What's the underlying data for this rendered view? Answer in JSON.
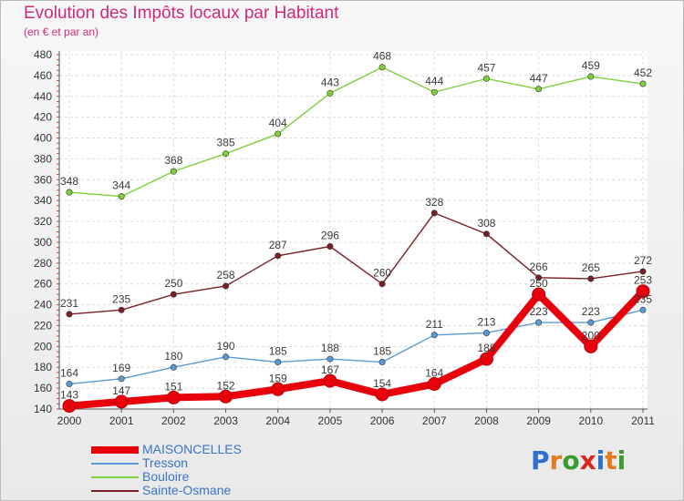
{
  "title": "Evolution des Impôts locaux par Habitant",
  "subtitle": "(en € et par an)",
  "logo": {
    "text": "Proxiti",
    "colors": [
      "#2f6fd1",
      "#e07b1f",
      "#3b9c2d",
      "#d4291e",
      "#2f6fd1",
      "#e07b1f",
      "#3b9c2d"
    ]
  },
  "chart_data": {
    "type": "line",
    "title": "Evolution des Impôts locaux par Habitant",
    "subtitle": "(en € et par an)",
    "x": [
      "2000",
      "2001",
      "2002",
      "2003",
      "2004",
      "2005",
      "2006",
      "2007",
      "2008",
      "2009",
      "2010",
      "2011"
    ],
    "ylim": [
      140,
      480
    ],
    "yticks": [
      140,
      160,
      180,
      200,
      220,
      240,
      260,
      280,
      300,
      320,
      340,
      360,
      380,
      400,
      420,
      440,
      460,
      480
    ],
    "grid": true,
    "legend_position": "bottom-left",
    "series": [
      {
        "name": "MAISONCELLES",
        "color": "#e8000b",
        "label_color": "#3a3a3a",
        "thick": true,
        "values": [
          143,
          147,
          151,
          152,
          159,
          167,
          154,
          164,
          188,
          250,
          200,
          253
        ],
        "labels": [
          "143",
          "147",
          "151",
          "152",
          "159",
          "167",
          "154",
          "164",
          "188",
          "250",
          "200",
          "253"
        ]
      },
      {
        "name": "Tresson",
        "color": "#5b9bd5",
        "label_color": "#3a3a3a",
        "thick": false,
        "values": [
          164,
          169,
          180,
          190,
          185,
          188,
          185,
          211,
          213,
          223,
          223,
          235
        ],
        "labels": [
          "164",
          "169",
          "180",
          "190",
          "185",
          "188",
          "185",
          "211",
          "213",
          "223",
          "223",
          "235"
        ]
      },
      {
        "name": "Bouloire",
        "color": "#7fd13b",
        "label_color": "#3a3a3a",
        "thick": false,
        "values": [
          348,
          344,
          368,
          385,
          404,
          443,
          468,
          444,
          457,
          447,
          459,
          452
        ],
        "labels": [
          "348",
          "344",
          "368",
          "385",
          "404",
          "443",
          "468",
          "444",
          "457",
          "447",
          "459",
          "452"
        ]
      },
      {
        "name": "Sainte-Osmane",
        "color": "#7b1f26",
        "label_color": "#3a3a3a",
        "thick": false,
        "values": [
          231,
          235,
          250,
          258,
          287,
          296,
          260,
          328,
          308,
          266,
          265,
          272
        ],
        "labels": [
          "231",
          "235",
          "250",
          "258",
          "287",
          "296",
          "260",
          "328",
          "308",
          "266",
          "265",
          "272"
        ]
      }
    ]
  }
}
